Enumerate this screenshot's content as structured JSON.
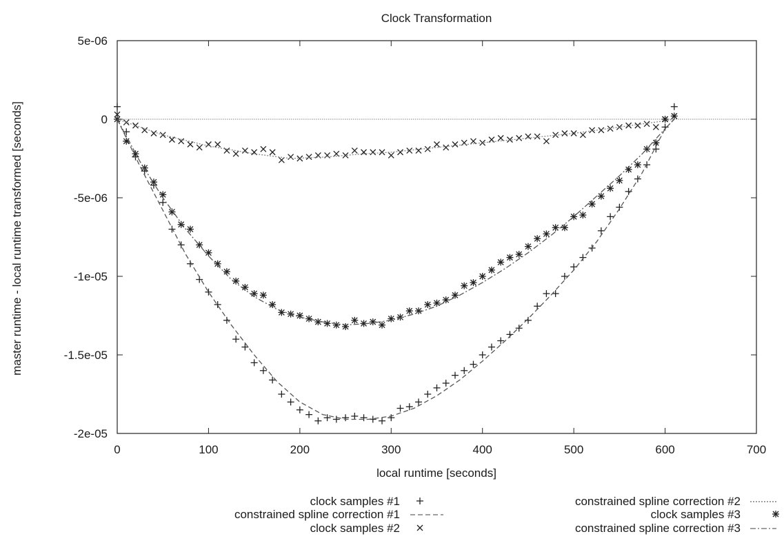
{
  "chart_data": {
    "type": "scatter",
    "title": "Clock Transformation",
    "xlabel": "local runtime [seconds]",
    "ylabel": "master runtime - local runtime transformed [seconds]",
    "xlim": [
      0,
      700
    ],
    "ylim": [
      -2e-05,
      5e-06
    ],
    "xticks": [
      0,
      100,
      200,
      300,
      400,
      500,
      600,
      700
    ],
    "xtick_labels": [
      "0",
      "100",
      "200",
      "300",
      "400",
      "500",
      "600",
      "700"
    ],
    "yticks": [
      5e-06,
      0,
      -5e-06,
      -1e-05,
      -1.5e-05,
      -2e-05
    ],
    "ytick_labels": [
      "5e-06",
      "0",
      "-5e-06",
      "-1e-05",
      "-1.5e-05",
      "-2e-05"
    ],
    "grid": false,
    "legend": {
      "position": "bottom",
      "columns": 2
    },
    "series": [
      {
        "name": "clock samples #1",
        "kind": "points",
        "marker": "plus",
        "legend_glyph": "+",
        "x": [
          0,
          10,
          20,
          30,
          40,
          50,
          60,
          70,
          80,
          90,
          100,
          110,
          120,
          130,
          140,
          150,
          160,
          170,
          180,
          190,
          200,
          210,
          220,
          230,
          240,
          250,
          260,
          270,
          280,
          290,
          300,
          310,
          320,
          330,
          340,
          350,
          360,
          370,
          380,
          390,
          400,
          410,
          420,
          430,
          440,
          450,
          460,
          470,
          480,
          490,
          500,
          510,
          520,
          530,
          540,
          550,
          560,
          570,
          580,
          590,
          600,
          610
        ],
        "y": [
          8e-07,
          -8e-07,
          -2.4e-06,
          -3.3e-06,
          -4.2e-06,
          -5.3e-06,
          -7e-06,
          -8e-06,
          -9.2e-06,
          -1.02e-05,
          -1.1e-05,
          -1.18e-05,
          -1.28e-05,
          -1.4e-05,
          -1.45e-05,
          -1.55e-05,
          -1.6e-05,
          -1.66e-05,
          -1.75e-05,
          -1.8e-05,
          -1.85e-05,
          -1.88e-05,
          -1.92e-05,
          -1.9e-05,
          -1.91e-05,
          -1.9e-05,
          -1.89e-05,
          -1.9e-05,
          -1.91e-05,
          -1.92e-05,
          -1.9e-05,
          -1.84e-05,
          -1.83e-05,
          -1.8e-05,
          -1.75e-05,
          -1.71e-05,
          -1.68e-05,
          -1.63e-05,
          -1.6e-05,
          -1.56e-05,
          -1.5e-05,
          -1.45e-05,
          -1.41e-05,
          -1.37e-05,
          -1.33e-05,
          -1.28e-05,
          -1.19e-05,
          -1.11e-05,
          -1.11e-05,
          -1e-05,
          -9.4e-06,
          -8.8e-06,
          -8.2e-06,
          -7.1e-06,
          -6.2e-06,
          -5.6e-06,
          -4.6e-06,
          -3.8e-06,
          -2.9e-06,
          -1.9e-06,
          -5e-07,
          8e-07
        ]
      },
      {
        "name": "constrained spline correction #1",
        "kind": "line",
        "dash": "7,4",
        "legend_glyph": "------",
        "x": [
          0,
          25,
          50,
          75,
          100,
          125,
          150,
          175,
          200,
          225,
          250,
          275,
          300,
          325,
          350,
          375,
          400,
          425,
          450,
          475,
          500,
          525,
          550,
          575,
          600,
          610
        ],
        "y": [
          0,
          -3e-06,
          -5.8e-06,
          -8.6e-06,
          -1.1e-05,
          -1.31e-05,
          -1.5e-05,
          -1.67e-05,
          -1.8e-05,
          -1.88e-05,
          -1.91e-05,
          -1.91e-05,
          -1.89e-05,
          -1.84e-05,
          -1.76e-05,
          -1.66e-05,
          -1.54e-05,
          -1.41e-05,
          -1.27e-05,
          -1.12e-05,
          -9.6e-06,
          -7.8e-06,
          -5.7e-06,
          -3.4e-06,
          -6e-07,
          0
        ]
      },
      {
        "name": "clock samples #2",
        "kind": "points",
        "marker": "cross",
        "legend_glyph": "×",
        "x": [
          0,
          10,
          20,
          30,
          40,
          50,
          60,
          70,
          80,
          90,
          100,
          110,
          120,
          130,
          140,
          150,
          160,
          170,
          180,
          190,
          200,
          210,
          220,
          230,
          240,
          250,
          260,
          270,
          280,
          290,
          300,
          310,
          320,
          330,
          340,
          350,
          360,
          370,
          380,
          390,
          400,
          410,
          420,
          430,
          440,
          450,
          460,
          470,
          480,
          490,
          500,
          510,
          520,
          530,
          540,
          550,
          560,
          570,
          580,
          590,
          600,
          610
        ],
        "y": [
          3e-07,
          -2e-07,
          -4e-07,
          -7e-07,
          -9e-07,
          -1e-06,
          -1.3e-06,
          -1.4e-06,
          -1.6e-06,
          -1.8e-06,
          -1.6e-06,
          -1.6e-06,
          -2e-06,
          -2.2e-06,
          -2e-06,
          -2.1e-06,
          -1.9e-06,
          -2.1e-06,
          -2.6e-06,
          -2.4e-06,
          -2.5e-06,
          -2.4e-06,
          -2.3e-06,
          -2.3e-06,
          -2.2e-06,
          -2.3e-06,
          -2e-06,
          -2.1e-06,
          -2.1e-06,
          -2.1e-06,
          -2.3e-06,
          -2.1e-06,
          -2e-06,
          -2e-06,
          -1.9e-06,
          -1.6e-06,
          -1.8e-06,
          -1.6e-06,
          -1.5e-06,
          -1.4e-06,
          -1.5e-06,
          -1.3e-06,
          -1.2e-06,
          -1.3e-06,
          -1.2e-06,
          -1.1e-06,
          -1.1e-06,
          -1.4e-06,
          -1e-06,
          -9e-07,
          -9e-07,
          -1e-06,
          -7e-07,
          -7e-07,
          -6e-07,
          -5e-07,
          -4e-07,
          -4e-07,
          -3e-07,
          -5e-07,
          0,
          2e-07
        ]
      },
      {
        "name": "constrained spline correction #2",
        "kind": "line",
        "dash": "2,2",
        "legend_glyph": "··········",
        "x": [
          0,
          50,
          100,
          150,
          190,
          230,
          270,
          300,
          350,
          400,
          450,
          500,
          550,
          600,
          610
        ],
        "y": [
          0,
          -1e-06,
          -1.7e-06,
          -2.2e-06,
          -2.5e-06,
          -2.4e-06,
          -2.2e-06,
          -2.1e-06,
          -1.8e-06,
          -1.5e-06,
          -1.2e-06,
          -9e-07,
          -5e-07,
          -1e-07,
          0
        ]
      },
      {
        "name": "clock samples #3",
        "kind": "points",
        "marker": "star",
        "legend_glyph": "✱",
        "x": [
          0,
          10,
          20,
          30,
          40,
          50,
          60,
          70,
          80,
          90,
          100,
          110,
          120,
          130,
          140,
          150,
          160,
          170,
          180,
          190,
          200,
          210,
          220,
          230,
          240,
          250,
          260,
          270,
          280,
          290,
          300,
          310,
          320,
          330,
          340,
          350,
          360,
          370,
          380,
          390,
          400,
          410,
          420,
          430,
          440,
          450,
          460,
          470,
          480,
          490,
          500,
          510,
          520,
          530,
          540,
          550,
          560,
          570,
          580,
          590,
          600,
          610
        ],
        "y": [
          0,
          -1.4e-06,
          -2.2e-06,
          -3.1e-06,
          -4e-06,
          -4.8e-06,
          -5.9e-06,
          -6.7e-06,
          -7e-06,
          -8e-06,
          -8.5e-06,
          -9.2e-06,
          -9.7e-06,
          -1.03e-05,
          -1.07e-05,
          -1.11e-05,
          -1.12e-05,
          -1.18e-05,
          -1.23e-05,
          -1.24e-05,
          -1.25e-05,
          -1.27e-05,
          -1.29e-05,
          -1.3e-05,
          -1.31e-05,
          -1.32e-05,
          -1.28e-05,
          -1.3e-05,
          -1.29e-05,
          -1.31e-05,
          -1.27e-05,
          -1.26e-05,
          -1.22e-05,
          -1.22e-05,
          -1.18e-05,
          -1.17e-05,
          -1.15e-05,
          -1.12e-05,
          -1.06e-05,
          -1.04e-05,
          -1e-05,
          -9.6e-06,
          -9.1e-06,
          -8.8e-06,
          -8.6e-06,
          -8.1e-06,
          -7.6e-06,
          -7.3e-06,
          -6.9e-06,
          -6.9e-06,
          -6.2e-06,
          -6.1e-06,
          -5.4e-06,
          -4.9e-06,
          -4.4e-06,
          -3.9e-06,
          -3.2e-06,
          -2.9e-06,
          -1.9e-06,
          -1.5e-06,
          0,
          2e-07
        ]
      },
      {
        "name": "constrained spline correction #3",
        "kind": "line",
        "dash": "8,3,2,3",
        "legend_glyph": "-·-·-·",
        "x": [
          0,
          25,
          50,
          75,
          100,
          125,
          150,
          175,
          200,
          225,
          250,
          275,
          300,
          325,
          350,
          375,
          400,
          425,
          450,
          475,
          500,
          525,
          550,
          575,
          600,
          610
        ],
        "y": [
          0,
          -2.7e-06,
          -5e-06,
          -7e-06,
          -8.7e-06,
          -1.02e-05,
          -1.13e-05,
          -1.21e-05,
          -1.26e-05,
          -1.29e-05,
          -1.31e-05,
          -1.3e-05,
          -1.28e-05,
          -1.24e-05,
          -1.19e-05,
          -1.12e-05,
          -1.04e-05,
          -9.5e-06,
          -8.5e-06,
          -7.4e-06,
          -6.2e-06,
          -4.9e-06,
          -3.6e-06,
          -2.2e-06,
          -6e-07,
          0
        ]
      }
    ]
  }
}
